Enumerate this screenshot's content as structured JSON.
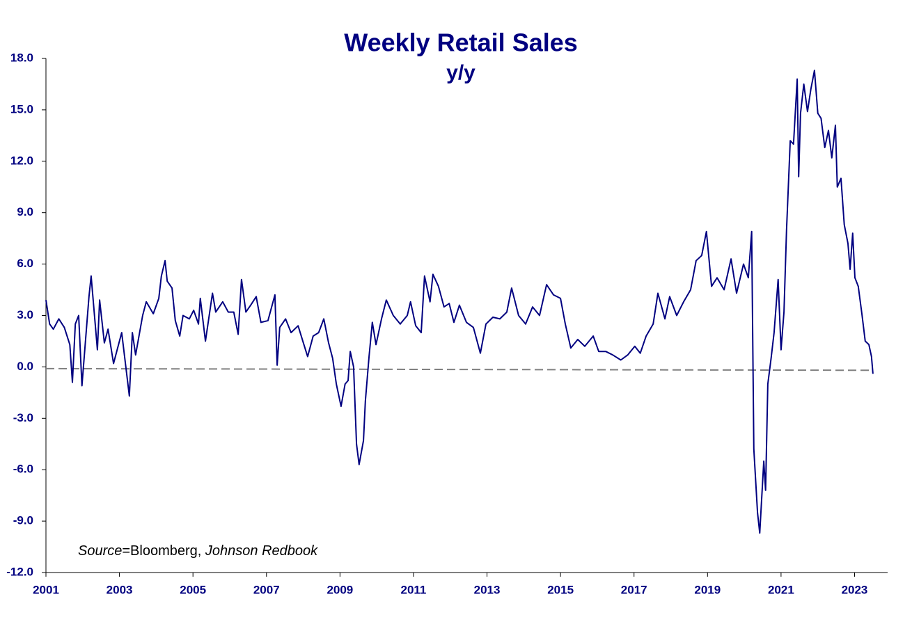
{
  "chart_data": {
    "type": "line",
    "title": "Weekly Retail Sales",
    "subtitle": "y/y",
    "annotation": {
      "source_italic": "Source",
      "source_plain": "=Bloomberg, ",
      "provider_italic": "Johnson Redbook"
    },
    "xlim": [
      2001,
      2023.9
    ],
    "xticks": [
      2001,
      2003,
      2005,
      2007,
      2009,
      2011,
      2013,
      2015,
      2017,
      2019,
      2021,
      2023
    ],
    "ylim": [
      -12,
      18
    ],
    "yticks": [
      {
        "value": -12,
        "label": "-12.0"
      },
      {
        "value": -9,
        "label": "-9.0"
      },
      {
        "value": -6,
        "label": "-6.0"
      },
      {
        "value": -3,
        "label": "-3.0"
      },
      {
        "value": 0,
        "label": "0.0"
      },
      {
        "value": 3,
        "label": "3.0"
      },
      {
        "value": 6,
        "label": "6.0"
      },
      {
        "value": 9,
        "label": "9.0"
      },
      {
        "value": 12,
        "label": "12.0"
      },
      {
        "value": 15,
        "label": "15.0"
      },
      {
        "value": 18,
        "label": "18.0"
      }
    ],
    "grid": false,
    "reference_line": {
      "color": "#808080",
      "x": [
        2001,
        2023.5
      ],
      "values": [
        -0.1,
        -0.2
      ]
    },
    "series": [
      {
        "color": "#000080",
        "x": [
          2001.0,
          2001.1,
          2001.2,
          2001.35,
          2001.5,
          2001.65,
          2001.72,
          2001.8,
          2001.89,
          2001.98,
          2002.17,
          2002.23,
          2002.4,
          2002.46,
          2002.59,
          2002.69,
          2002.84,
          2003.06,
          2003.27,
          2003.35,
          2003.44,
          2003.63,
          2003.73,
          2003.92,
          2004.07,
          2004.14,
          2004.24,
          2004.3,
          2004.43,
          2004.52,
          2004.64,
          2004.73,
          2004.9,
          2005.02,
          2005.15,
          2005.2,
          2005.34,
          2005.53,
          2005.62,
          2005.81,
          2005.96,
          2006.11,
          2006.23,
          2006.32,
          2006.44,
          2006.57,
          2006.72,
          2006.85,
          2007.04,
          2007.23,
          2007.29,
          2007.36,
          2007.52,
          2007.67,
          2007.86,
          2007.99,
          2008.12,
          2008.27,
          2008.42,
          2008.56,
          2008.69,
          2008.8,
          2008.9,
          2009.03,
          2009.14,
          2009.22,
          2009.28,
          2009.37,
          2009.45,
          2009.52,
          2009.64,
          2009.69,
          2009.79,
          2009.88,
          2009.98,
          2010.13,
          2010.26,
          2010.45,
          2010.64,
          2010.83,
          2010.92,
          2011.06,
          2011.21,
          2011.3,
          2011.45,
          2011.53,
          2011.68,
          2011.83,
          2011.97,
          2012.1,
          2012.25,
          2012.44,
          2012.63,
          2012.82,
          2012.97,
          2013.16,
          2013.35,
          2013.54,
          2013.67,
          2013.86,
          2014.05,
          2014.24,
          2014.43,
          2014.62,
          2014.81,
          2015.0,
          2015.13,
          2015.28,
          2015.47,
          2015.66,
          2015.89,
          2016.04,
          2016.23,
          2016.42,
          2016.64,
          2016.83,
          2017.02,
          2017.17,
          2017.33,
          2017.52,
          2017.65,
          2017.84,
          2017.97,
          2018.16,
          2018.35,
          2018.54,
          2018.69,
          2018.84,
          2018.97,
          2019.11,
          2019.26,
          2019.45,
          2019.64,
          2019.79,
          2019.98,
          2020.11,
          2020.2,
          2020.26,
          2020.36,
          2020.42,
          2020.53,
          2020.58,
          2020.64,
          2020.73,
          2020.81,
          2020.92,
          2021.0,
          2021.08,
          2021.15,
          2021.25,
          2021.34,
          2021.44,
          2021.48,
          2021.53,
          2021.62,
          2021.72,
          2021.81,
          2021.91,
          2022.0,
          2022.09,
          2022.19,
          2022.29,
          2022.38,
          2022.48,
          2022.53,
          2022.63,
          2022.72,
          2022.82,
          2022.88,
          2022.95,
          2023.01,
          2023.1,
          2023.2,
          2023.29,
          2023.39,
          2023.46,
          2023.5
        ],
        "values": [
          3.9,
          2.5,
          2.2,
          2.8,
          2.3,
          1.3,
          -0.9,
          2.5,
          3.0,
          -1.1,
          4.1,
          5.3,
          1.0,
          3.9,
          1.4,
          2.2,
          0.2,
          2.0,
          -1.7,
          2.0,
          0.7,
          3.0,
          3.8,
          3.1,
          4.0,
          5.3,
          6.2,
          5.0,
          4.6,
          2.7,
          1.8,
          3.0,
          2.8,
          3.3,
          2.5,
          4.0,
          1.5,
          4.3,
          3.2,
          3.8,
          3.2,
          3.2,
          1.9,
          5.1,
          3.2,
          3.6,
          4.1,
          2.6,
          2.7,
          4.2,
          0.1,
          2.3,
          2.8,
          2.0,
          2.4,
          1.5,
          0.6,
          1.8,
          2.0,
          2.8,
          1.4,
          0.5,
          -1.0,
          -2.3,
          -1.0,
          -0.8,
          0.9,
          0.0,
          -4.5,
          -5.7,
          -4.3,
          -2.0,
          0.6,
          2.6,
          1.3,
          2.8,
          3.9,
          3.0,
          2.5,
          3.0,
          3.8,
          2.4,
          2.0,
          5.3,
          3.8,
          5.4,
          4.7,
          3.5,
          3.7,
          2.6,
          3.6,
          2.6,
          2.3,
          0.8,
          2.5,
          2.9,
          2.8,
          3.2,
          4.6,
          3.0,
          2.5,
          3.5,
          3.0,
          4.8,
          4.2,
          4.0,
          2.5,
          1.1,
          1.6,
          1.2,
          1.8,
          0.9,
          0.9,
          0.7,
          0.4,
          0.7,
          1.2,
          0.8,
          1.8,
          2.5,
          4.3,
          2.8,
          4.1,
          3.0,
          3.8,
          4.5,
          6.2,
          6.5,
          7.9,
          4.7,
          5.2,
          4.5,
          6.3,
          4.3,
          6.0,
          5.2,
          7.9,
          -4.8,
          -8.5,
          -9.7,
          -5.5,
          -7.2,
          -1.0,
          0.5,
          2.0,
          5.1,
          1.0,
          3.2,
          8.0,
          13.2,
          13.0,
          16.8,
          11.1,
          14.8,
          16.5,
          14.9,
          16.2,
          17.3,
          14.8,
          14.5,
          12.8,
          13.8,
          12.2,
          14.1,
          10.5,
          11.0,
          8.3,
          7.2,
          5.7,
          7.8,
          5.2,
          4.7,
          3.1,
          1.5,
          1.3,
          0.6,
          -0.4
        ]
      }
    ]
  }
}
